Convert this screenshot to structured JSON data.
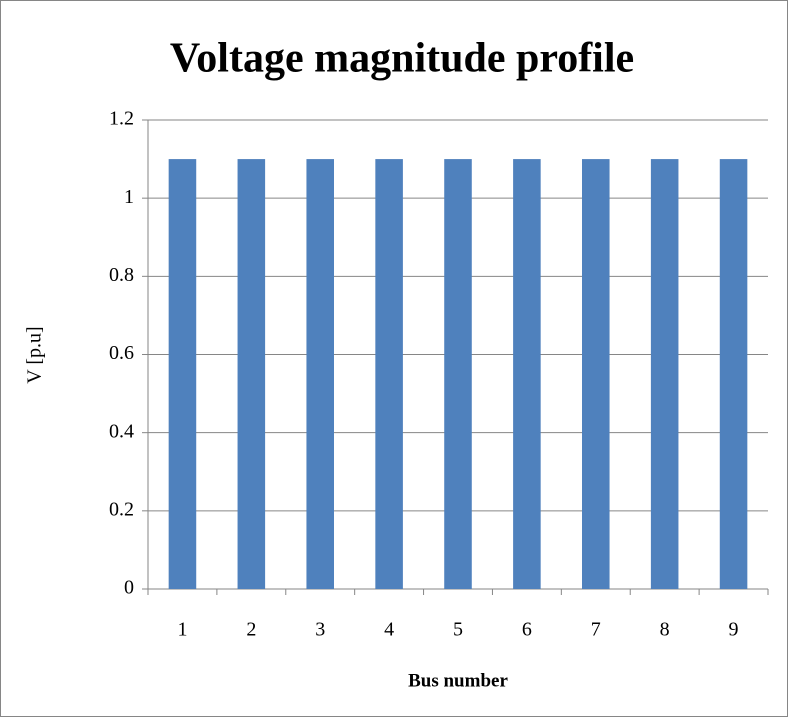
{
  "chart_data": {
    "type": "bar",
    "title": "Voltage magnitude profile",
    "x_label": "Bus number",
    "y_label": "V [p.u]",
    "categories": [
      "1",
      "2",
      "3",
      "4",
      "5",
      "6",
      "7",
      "8",
      "9"
    ],
    "values": [
      1.1,
      1.1,
      1.1,
      1.1,
      1.1,
      1.1,
      1.1,
      1.1,
      1.1
    ],
    "color": "#4f81bd",
    "ylim": [
      0,
      1.2
    ],
    "yticks": [
      0,
      0.2,
      0.4,
      0.6,
      0.8,
      1,
      1.2
    ],
    "grid": true
  }
}
